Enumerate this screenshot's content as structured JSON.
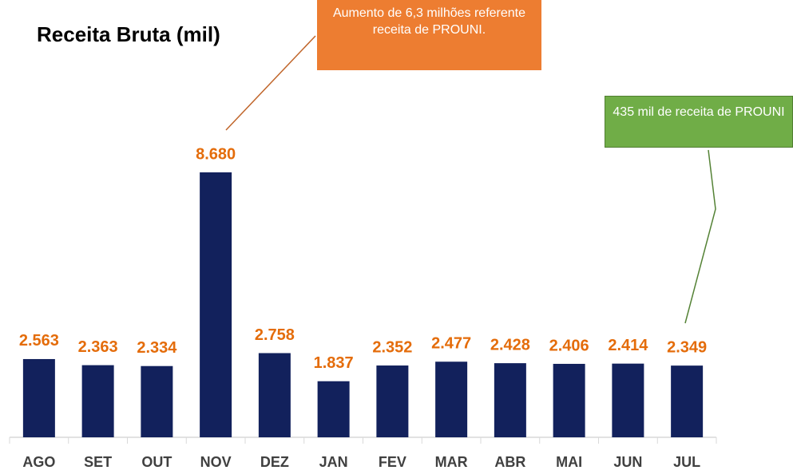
{
  "chart_data": {
    "type": "bar",
    "title": "Receita Bruta (mil)",
    "categories": [
      "AGO",
      "SET",
      "OUT",
      "NOV",
      "DEZ",
      "JAN",
      "FEV",
      "MAR",
      "ABR",
      "MAI",
      "JUN",
      "JUL"
    ],
    "values": [
      2563,
      2363,
      2334,
      8680,
      2758,
      1837,
      2352,
      2477,
      2428,
      2406,
      2414,
      2349
    ],
    "value_labels": [
      "2.563",
      "2.363",
      "2.334",
      "8.680",
      "2.758",
      "1.837",
      "2.352",
      "2.477",
      "2.428",
      "2.406",
      "2.414",
      "2.349"
    ],
    "color": "#12215c",
    "label_color": "#e46c0a",
    "ylim": [
      0,
      10000
    ],
    "annotations": [
      {
        "text": "Aumento de 6,3 milhões referente receita de PROUNI.",
        "color": "#ed7d31"
      },
      {
        "text": "435 mil de receita de PROUNI",
        "color": "#70ad47"
      }
    ]
  }
}
